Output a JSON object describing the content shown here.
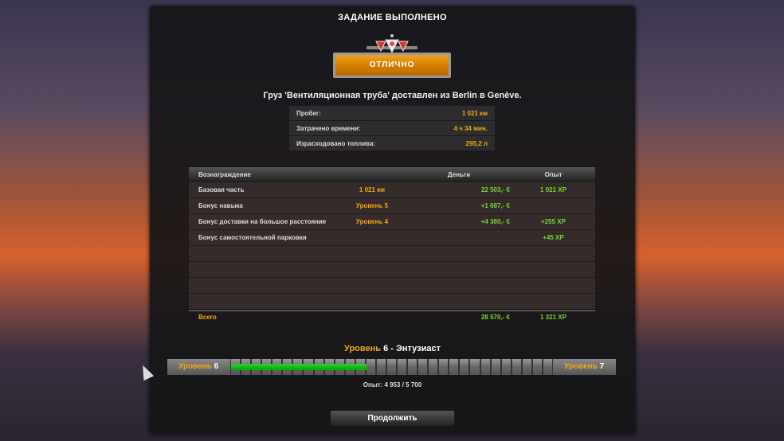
{
  "title": "ЗАДАНИЕ ВЫПОЛНЕНО",
  "rating": "ОТЛИЧНО",
  "cargo_message": "Груз 'Вентиляционная труба' доставлен из Berlin в Genève.",
  "stats": [
    {
      "label": "Пробег:",
      "value": "1 021 км"
    },
    {
      "label": "Затрачено времени:",
      "value": "4 ч 34 мин."
    },
    {
      "label": "Израсходовано топлива:",
      "value": "295,2 л"
    }
  ],
  "rewards": {
    "headers": {
      "reward": "Вознаграждение",
      "money": "Деньги",
      "xp": "Опыт"
    },
    "rows": [
      {
        "name": "Базовая часть",
        "detail": "1 021 км",
        "money": "22 503,- €",
        "xp": "1 021 XP"
      },
      {
        "name": "Бонус навыка",
        "detail": "Уровень 5",
        "money": "+1 687,- €",
        "xp": ""
      },
      {
        "name": "Бонус доставки на большое расстояние",
        "detail": "Уровень 4",
        "money": "+4 380,- €",
        "xp": "+255 XP"
      },
      {
        "name": "Бонус самостоятельной парковки",
        "detail": "",
        "money": "",
        "xp": "+45 XP"
      }
    ],
    "total": {
      "label": "Всего",
      "money": "28 570,- €",
      "xp": "1 321 XP"
    }
  },
  "level": {
    "word": "Уровень",
    "current": "6",
    "rank": " - Энтузиаст",
    "next": "7",
    "xp_text": "Опыт: 4 953 / 5 700",
    "bar_fill": 0.42
  },
  "continue_label": "Продолжить"
}
